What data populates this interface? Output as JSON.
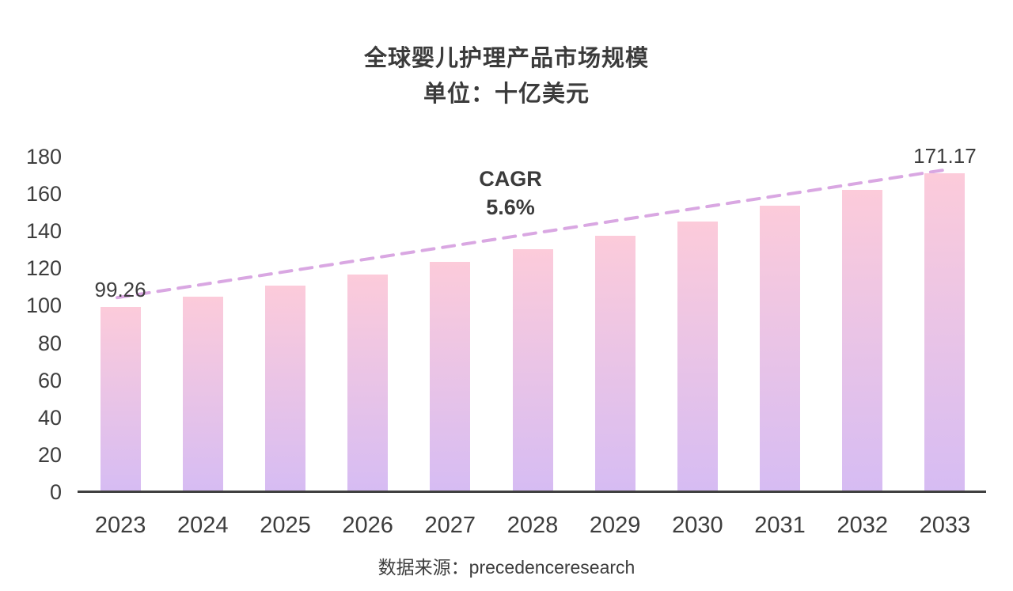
{
  "chart_data": {
    "type": "bar",
    "title": "全球婴儿护理产品市场规模",
    "subtitle": "单位：十亿美元",
    "categories": [
      "2023",
      "2024",
      "2025",
      "2026",
      "2027",
      "2028",
      "2029",
      "2030",
      "2031",
      "2032",
      "2033"
    ],
    "values": [
      99.26,
      104.82,
      110.69,
      116.89,
      123.43,
      130.34,
      137.65,
      145.35,
      153.49,
      162.09,
      171.17
    ],
    "point_labels": [
      {
        "index": 0,
        "text": "99.26"
      },
      {
        "index": 10,
        "text": "171.17"
      }
    ],
    "yticks": [
      0,
      20,
      40,
      60,
      80,
      100,
      120,
      140,
      160,
      180
    ],
    "ylim": [
      0,
      180
    ],
    "grid": false,
    "legend": "none",
    "annotation": {
      "title": "CAGR",
      "value": "5.6%"
    },
    "trendline": {
      "style": "dashed",
      "from_index": 0,
      "to_index": 10,
      "color": "#d9a7e2"
    },
    "colors": {
      "bar_top": "#fccbda",
      "bar_bottom": "#d6bcf3",
      "axis": "#404040",
      "text": "#3d3d3d"
    },
    "source": "数据来源：precedenceresearch"
  }
}
